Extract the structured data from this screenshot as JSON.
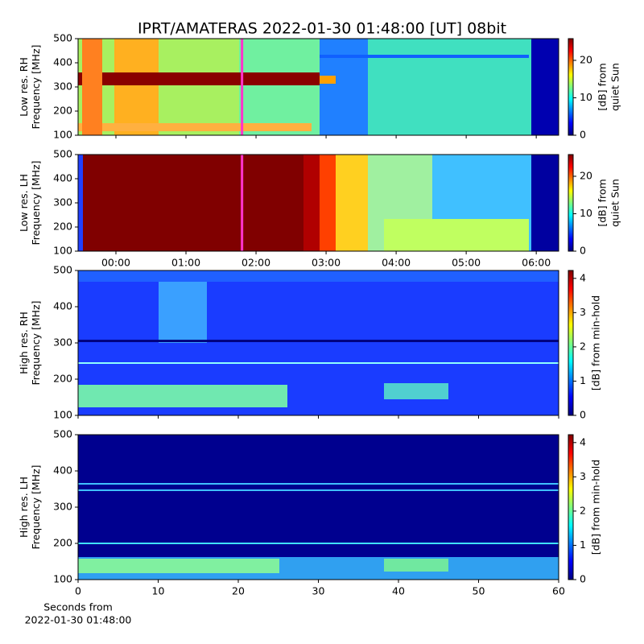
{
  "title": "IPRT/AMATERAS 2022-01-30 01:48:00 [UT]   08bit",
  "chart_data": [
    {
      "type": "spectrogram",
      "ylabel": [
        "Low res. RH",
        "Frequency [MHz]"
      ],
      "ylim": [
        100,
        500
      ],
      "yticks": [
        100,
        200,
        300,
        400,
        500
      ],
      "xlim": [
        -0.54,
        6.32
      ],
      "xticks": [
        0,
        1,
        2,
        3,
        4,
        5,
        6
      ],
      "xticklabels": false,
      "marker_x": 1.8,
      "marker_color": "#ff33cc",
      "colormap": "jet",
      "clim": [
        0,
        25.8
      ],
      "cticks": [
        0,
        10,
        20
      ],
      "clabel": [
        "[dB] from",
        "quiet Sun"
      ]
    },
    {
      "type": "spectrogram",
      "ylabel": [
        "Low res. LH",
        "Frequency [MHz]"
      ],
      "ylim": [
        100,
        500
      ],
      "yticks": [
        100,
        200,
        300,
        400,
        500
      ],
      "xlim": [
        -0.54,
        6.32
      ],
      "xticks": [
        {
          "value": 0,
          "label": "00:00"
        },
        {
          "value": 1,
          "label": "01:00"
        },
        {
          "value": 2,
          "label": "02:00"
        },
        {
          "value": 3,
          "label": "03:00"
        },
        {
          "value": 4,
          "label": "04:00"
        },
        {
          "value": 5,
          "label": "05:00"
        },
        {
          "value": 6,
          "label": "06:00"
        }
      ],
      "xticklabels": true,
      "marker_x": 1.8,
      "marker_color": "#ff33cc",
      "colormap": "jet",
      "clim": [
        0,
        25.8
      ],
      "cticks": [
        0,
        10,
        20
      ],
      "clabel": [
        "[dB] from",
        "quiet Sun"
      ]
    },
    {
      "type": "spectrogram",
      "ylabel": [
        "High res. RH",
        "Frequency [MHz]"
      ],
      "ylim": [
        100,
        500
      ],
      "yticks": [
        100,
        200,
        300,
        400,
        500
      ],
      "xlim": [
        0,
        60
      ],
      "xticks": [
        0,
        10,
        20,
        30,
        40,
        50,
        60
      ],
      "xticklabels": false,
      "colormap": "jet",
      "clim": [
        0,
        4.23
      ],
      "cticks": [
        0,
        1,
        2,
        3,
        4
      ],
      "clabel": [
        "[dB] from min-hold"
      ]
    },
    {
      "type": "spectrogram",
      "ylabel": [
        "High res. LH",
        "Frequency [MHz]"
      ],
      "ylim": [
        100,
        500
      ],
      "yticks": [
        100,
        200,
        300,
        400,
        500
      ],
      "xlim": [
        0,
        60
      ],
      "xticks": [
        0,
        10,
        20,
        30,
        40,
        50,
        60
      ],
      "xticklabels": true,
      "xlabel": [
        "Seconds from",
        "2022-01-30 01:48:00"
      ],
      "colormap": "jet",
      "clim": [
        0,
        4.23
      ],
      "cticks": [
        0,
        1,
        2,
        3,
        4
      ],
      "clabel": [
        "[dB] from min-hold"
      ]
    }
  ]
}
